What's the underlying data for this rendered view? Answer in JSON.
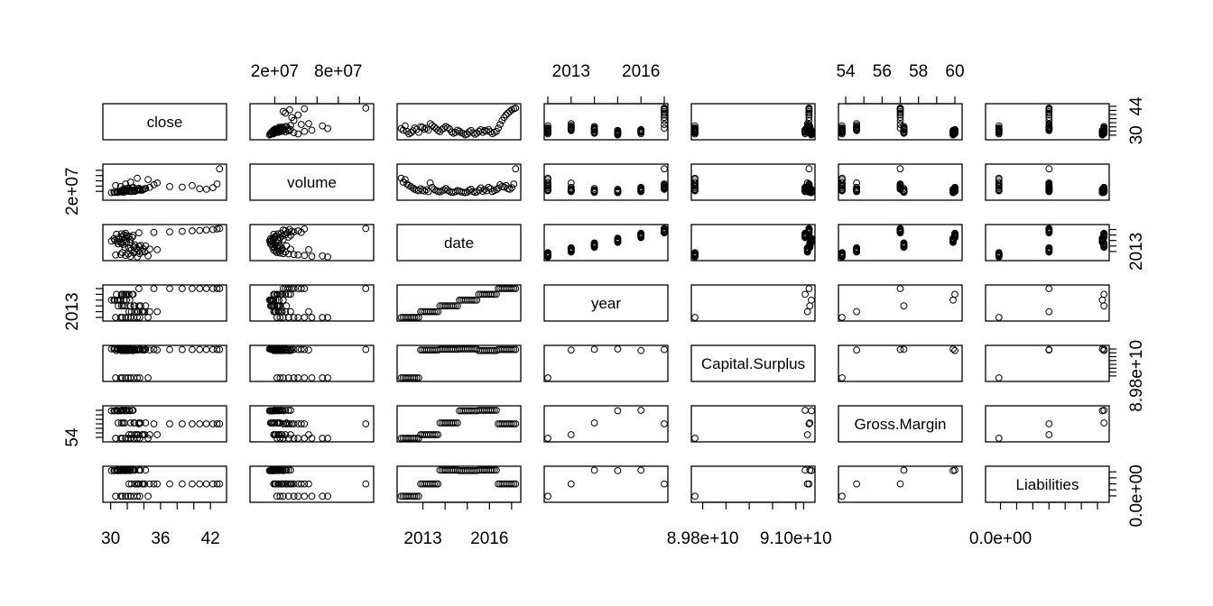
{
  "chart_data": {
    "type": "scatter",
    "subtype": "scatterplot-matrix",
    "variables": [
      {
        "name": "close",
        "range": [
          29.5,
          43.5
        ],
        "sample": "close"
      },
      {
        "name": "volume",
        "range": [
          0,
          110000000
        ],
        "sample": "volume"
      },
      {
        "name": "date",
        "range": [
          2012.0,
          2017.25
        ],
        "sample": "date"
      },
      {
        "name": "year",
        "range": [
          2012,
          2017
        ],
        "values": [
          2012,
          2013,
          2014,
          2015,
          2016,
          2017
        ]
      },
      {
        "name": "Capital.Surplus",
        "range": [
          89700000000,
          91200000000
        ],
        "values": [
          89700000000,
          91150000000,
          91180000000,
          91200000000,
          91120000000,
          91170000000
        ]
      },
      {
        "name": "Gross.Margin",
        "range": [
          53.8,
          60.2
        ],
        "values": [
          53.8,
          54.6,
          57.2,
          59.9,
          60.0,
          57.0
        ]
      },
      {
        "name": "Liabilities",
        "range": [
          -700000000,
          6500000000
        ],
        "values": [
          -100000000,
          3000000000,
          6400000000,
          6300000000,
          6400000000,
          3000000000
        ]
      }
    ],
    "axes": {
      "top": [
        {
          "panel": 1,
          "ticks": [
            20000000,
            40000000,
            60000000,
            80000000,
            100000000
          ],
          "labels": [
            {
              "text": "2e+07",
              "value": 20000000
            },
            {
              "text": "8e+07",
              "value": 80000000
            }
          ]
        },
        {
          "panel": 3,
          "ticks": [
            2012,
            2013,
            2014,
            2015,
            2016,
            2017
          ],
          "labels": [
            {
              "text": "2013",
              "value": 2013
            },
            {
              "text": "2016",
              "value": 2016
            }
          ]
        },
        {
          "panel": 5,
          "ticks": [
            54,
            55,
            56,
            57,
            58,
            59,
            60
          ],
          "labels": [
            {
              "text": "54",
              "value": 54
            },
            {
              "text": "56",
              "value": 56
            },
            {
              "text": "58",
              "value": 58
            },
            {
              "text": "60",
              "value": 60
            }
          ]
        }
      ],
      "bottom": [
        {
          "panel": 0,
          "ticks": [
            30,
            32,
            34,
            36,
            38,
            40,
            42
          ],
          "labels": [
            {
              "text": "30",
              "value": 30
            },
            {
              "text": "36",
              "value": 36
            },
            {
              "text": "42",
              "value": 42
            }
          ]
        },
        {
          "panel": 2,
          "ticks": [
            2013,
            2014,
            2015,
            2016,
            2017
          ],
          "labels": [
            {
              "text": "2013",
              "value": 2013
            },
            {
              "text": "2016",
              "value": 2016
            }
          ]
        },
        {
          "panel": 4,
          "ticks": [
            89800000000,
            90100000000,
            90400000000,
            90700000000,
            91000000000,
            91100000000
          ],
          "labels": [
            {
              "text": "8.98e+10",
              "value": 89800000000
            },
            {
              "text": "9.10e+10",
              "value": 91000000000
            }
          ]
        },
        {
          "panel": 6,
          "ticks": [
            0,
            1000000000,
            2000000000,
            3000000000,
            4000000000,
            5000000000,
            6000000000
          ],
          "labels": [
            {
              "text": "0.0e+00",
              "value": 0
            }
          ]
        }
      ],
      "left": [
        {
          "panel": 1,
          "ticks": [
            20000000,
            40000000,
            60000000,
            80000000,
            100000000
          ],
          "labels": [
            {
              "text": "2e+07",
              "value": 20000000
            }
          ]
        },
        {
          "panel": 3,
          "ticks": [
            2012,
            2013,
            2014,
            2015,
            2016,
            2017
          ],
          "labels": [
            {
              "text": "2013",
              "value": 2013
            }
          ]
        },
        {
          "panel": 5,
          "ticks": [
            54,
            55,
            56,
            57,
            58,
            59,
            60
          ],
          "labels": [
            {
              "text": "54",
              "value": 54
            }
          ]
        }
      ],
      "right": [
        {
          "panel": 0,
          "ticks": [
            30,
            32,
            34,
            36,
            38,
            40,
            42,
            44
          ],
          "labels": [
            {
              "text": "30",
              "value": 30
            },
            {
              "text": "44",
              "value": 44
            }
          ]
        },
        {
          "panel": 2,
          "ticks": [
            2013,
            2014,
            2015,
            2016,
            2017
          ],
          "labels": [
            {
              "text": "2013",
              "value": 2013
            }
          ]
        },
        {
          "panel": 4,
          "ticks": [
            89800000000,
            90000000000,
            90200000000,
            90400000000,
            90600000000,
            90800000000,
            91000000000,
            91200000000
          ],
          "labels": [
            {
              "text": "8.98e+10",
              "value": 89800000000
            }
          ]
        },
        {
          "panel": 6,
          "ticks": [
            0,
            1500000000,
            3000000000,
            4500000000,
            6000000000
          ],
          "labels": [
            {
              "text": "0.0e+00",
              "value": 0
            }
          ]
        }
      ]
    },
    "sample": {
      "close": [
        33.2,
        32.4,
        34.5,
        31.8,
        30.6,
        31.2,
        32.1,
        33.5,
        32.8,
        31.4,
        34.1,
        33.8,
        32.9,
        33.3,
        32.5,
        35.6,
        34.7,
        33.9,
        33.1,
        32.2,
        31.7,
        32.8,
        33.4,
        34.2,
        33.6,
        32.9,
        31.5,
        30.9,
        31.3,
        32.4,
        31.9,
        31.2,
        30.8,
        30.1,
        30.5,
        31.6,
        32.3,
        31.1,
        30.4,
        30.9,
        31.8,
        32.6,
        31.4,
        32.2,
        31.9,
        32.7,
        31.6,
        30.7,
        31.3,
        31.8,
        33.4,
        35.2,
        37.1,
        38.6,
        39.8,
        40.7,
        41.5,
        42.3,
        42.8,
        43.1
      ],
      "volume": [
        70000000,
        55000000,
        65000000,
        48000000,
        42000000,
        38000000,
        33000000,
        28000000,
        25000000,
        22000000,
        30000000,
        24000000,
        21000000,
        26000000,
        19000000,
        52000000,
        35000000,
        27000000,
        23000000,
        20000000,
        18000000,
        22000000,
        25000000,
        31000000,
        24000000,
        20000000,
        17000000,
        16000000,
        19000000,
        23000000,
        21000000,
        18000000,
        16000000,
        15000000,
        17000000,
        24000000,
        28000000,
        19000000,
        16000000,
        18000000,
        25000000,
        33000000,
        20000000,
        27000000,
        22000000,
        35000000,
        30000000,
        19000000,
        23000000,
        26000000,
        32000000,
        45000000,
        38000000,
        36000000,
        42000000,
        30000000,
        28000000,
        34000000,
        48000000,
        106000000
      ],
      "date": [
        2012.02,
        2012.11,
        2012.2,
        2012.28,
        2012.37,
        2012.46,
        2012.55,
        2012.63,
        2012.72,
        2012.81,
        2012.9,
        2012.98,
        2013.07,
        2013.16,
        2013.25,
        2013.33,
        2013.42,
        2013.51,
        2013.6,
        2013.68,
        2013.77,
        2013.86,
        2013.95,
        2014.03,
        2014.12,
        2014.21,
        2014.3,
        2014.38,
        2014.47,
        2014.56,
        2014.65,
        2014.73,
        2014.82,
        2014.91,
        2015.0,
        2015.08,
        2015.17,
        2015.26,
        2015.35,
        2015.43,
        2015.52,
        2015.61,
        2015.7,
        2015.78,
        2015.87,
        2015.96,
        2016.05,
        2016.13,
        2016.22,
        2016.31,
        2016.4,
        2016.48,
        2016.57,
        2016.66,
        2016.75,
        2016.83,
        2016.92,
        2017.01,
        2017.1,
        2017.18
      ]
    }
  }
}
